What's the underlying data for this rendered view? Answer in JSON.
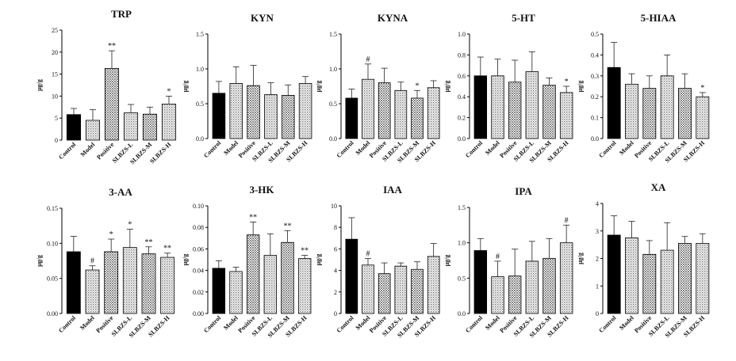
{
  "y_unit": "μg/g",
  "categories": [
    "Control",
    "Model",
    "Positive",
    "SLBZS-L",
    "SLBZS-M",
    "SLBZS-H"
  ],
  "patterns": [
    "solid",
    "light",
    "dots",
    "light",
    "dots",
    "light"
  ],
  "chart_data": [
    {
      "type": "bar",
      "title": "TRP",
      "ylabel": "μg/g",
      "ylim": [
        0,
        25
      ],
      "yticks": [
        "0",
        "5",
        "10",
        "15",
        "20",
        "25"
      ],
      "values": [
        5.8,
        4.5,
        16.3,
        6.2,
        5.9,
        8.2
      ],
      "errors": [
        1.4,
        2.4,
        4.0,
        1.9,
        1.6,
        1.8
      ],
      "sig": [
        "",
        "",
        "**",
        "",
        "",
        "*"
      ]
    },
    {
      "type": "bar",
      "title": "KYN",
      "ylabel": "μg/g",
      "ylim": [
        0,
        1.5
      ],
      "yticks": [
        "0.0",
        "0.5",
        "1.0",
        "1.5"
      ],
      "values": [
        0.65,
        0.79,
        0.76,
        0.63,
        0.62,
        0.79
      ],
      "errors": [
        0.17,
        0.24,
        0.29,
        0.17,
        0.15,
        0.1
      ],
      "sig": [
        "",
        "",
        "",
        "",
        "",
        ""
      ]
    },
    {
      "type": "bar",
      "title": "KYNA",
      "ylabel": "μg/g",
      "ylim": [
        0,
        1.5
      ],
      "yticks": [
        "0.0",
        "0.5",
        "1.0",
        "1.5"
      ],
      "values": [
        0.58,
        0.85,
        0.8,
        0.69,
        0.58,
        0.73
      ],
      "errors": [
        0.13,
        0.22,
        0.21,
        0.12,
        0.11,
        0.1
      ],
      "sig": [
        "",
        "#",
        "",
        "",
        "*",
        ""
      ]
    },
    {
      "type": "bar",
      "title": "5-HT",
      "ylabel": "μg/g",
      "ylim": [
        0,
        1.0
      ],
      "yticks": [
        "0.0",
        "0.2",
        "0.4",
        "0.6",
        "0.8",
        "1.0"
      ],
      "values": [
        0.6,
        0.6,
        0.54,
        0.64,
        0.51,
        0.44
      ],
      "errors": [
        0.18,
        0.16,
        0.21,
        0.19,
        0.07,
        0.06
      ],
      "sig": [
        "",
        "",
        "",
        "",
        "",
        "*"
      ]
    },
    {
      "type": "bar",
      "title": "5-HIAA",
      "ylabel": "μg/g",
      "ylim": [
        0,
        0.5
      ],
      "yticks": [
        "0.0",
        "0.1",
        "0.2",
        "0.3",
        "0.4",
        "0.5"
      ],
      "values": [
        0.34,
        0.26,
        0.24,
        0.3,
        0.24,
        0.2
      ],
      "errors": [
        0.12,
        0.05,
        0.06,
        0.1,
        0.07,
        0.02
      ],
      "sig": [
        "",
        "",
        "",
        "",
        "",
        "*"
      ]
    },
    {
      "type": "bar",
      "title": "3-AA",
      "ylabel": "μg/g",
      "ylim": [
        0,
        0.15
      ],
      "yticks": [
        "0.00",
        "0.05",
        "0.10",
        "0.15"
      ],
      "values": [
        0.088,
        0.062,
        0.088,
        0.094,
        0.085,
        0.08
      ],
      "errors": [
        0.022,
        0.006,
        0.018,
        0.026,
        0.01,
        0.006
      ],
      "sig": [
        "",
        "#",
        "*",
        "*",
        "**",
        "**"
      ]
    },
    {
      "type": "bar",
      "title": "3-HK",
      "ylabel": "μg/g",
      "ylim": [
        0,
        0.1
      ],
      "yticks": [
        "0.00",
        "0.02",
        "0.04",
        "0.06",
        "0.08",
        "0.10"
      ],
      "values": [
        0.042,
        0.039,
        0.073,
        0.054,
        0.066,
        0.051
      ],
      "errors": [
        0.007,
        0.004,
        0.012,
        0.02,
        0.011,
        0.003
      ],
      "sig": [
        "",
        "",
        "**",
        "",
        "**",
        "**"
      ]
    },
    {
      "type": "bar",
      "title": "IAA",
      "ylabel": "μg/g",
      "ylim": [
        0,
        10
      ],
      "yticks": [
        "0",
        "2",
        "4",
        "6",
        "8",
        "10"
      ],
      "values": [
        6.9,
        4.5,
        3.7,
        4.4,
        4.1,
        5.3
      ],
      "errors": [
        2.0,
        0.6,
        1.0,
        0.3,
        0.7,
        1.2
      ],
      "sig": [
        "",
        "#",
        "",
        "",
        "",
        ""
      ]
    },
    {
      "type": "bar",
      "title": "IPA",
      "ylabel": "μg/g",
      "ylim": [
        0,
        1.5
      ],
      "yticks": [
        "0.0",
        "0.5",
        "1.0",
        "1.5"
      ],
      "values": [
        0.89,
        0.52,
        0.53,
        0.74,
        0.78,
        1.0
      ],
      "errors": [
        0.17,
        0.22,
        0.38,
        0.28,
        0.28,
        0.25
      ],
      "sig": [
        "",
        "#",
        "",
        "",
        "",
        "#"
      ]
    },
    {
      "type": "bar",
      "title": "XA",
      "ylabel": "μg/g",
      "ylim": [
        0,
        4
      ],
      "yticks": [
        "0",
        "1",
        "2",
        "3",
        "4"
      ],
      "values": [
        2.85,
        2.75,
        2.15,
        2.3,
        2.55,
        2.55
      ],
      "errors": [
        0.7,
        0.6,
        0.5,
        1.0,
        0.25,
        0.35
      ],
      "sig": [
        "",
        "",
        "",
        "",
        "",
        ""
      ]
    }
  ]
}
